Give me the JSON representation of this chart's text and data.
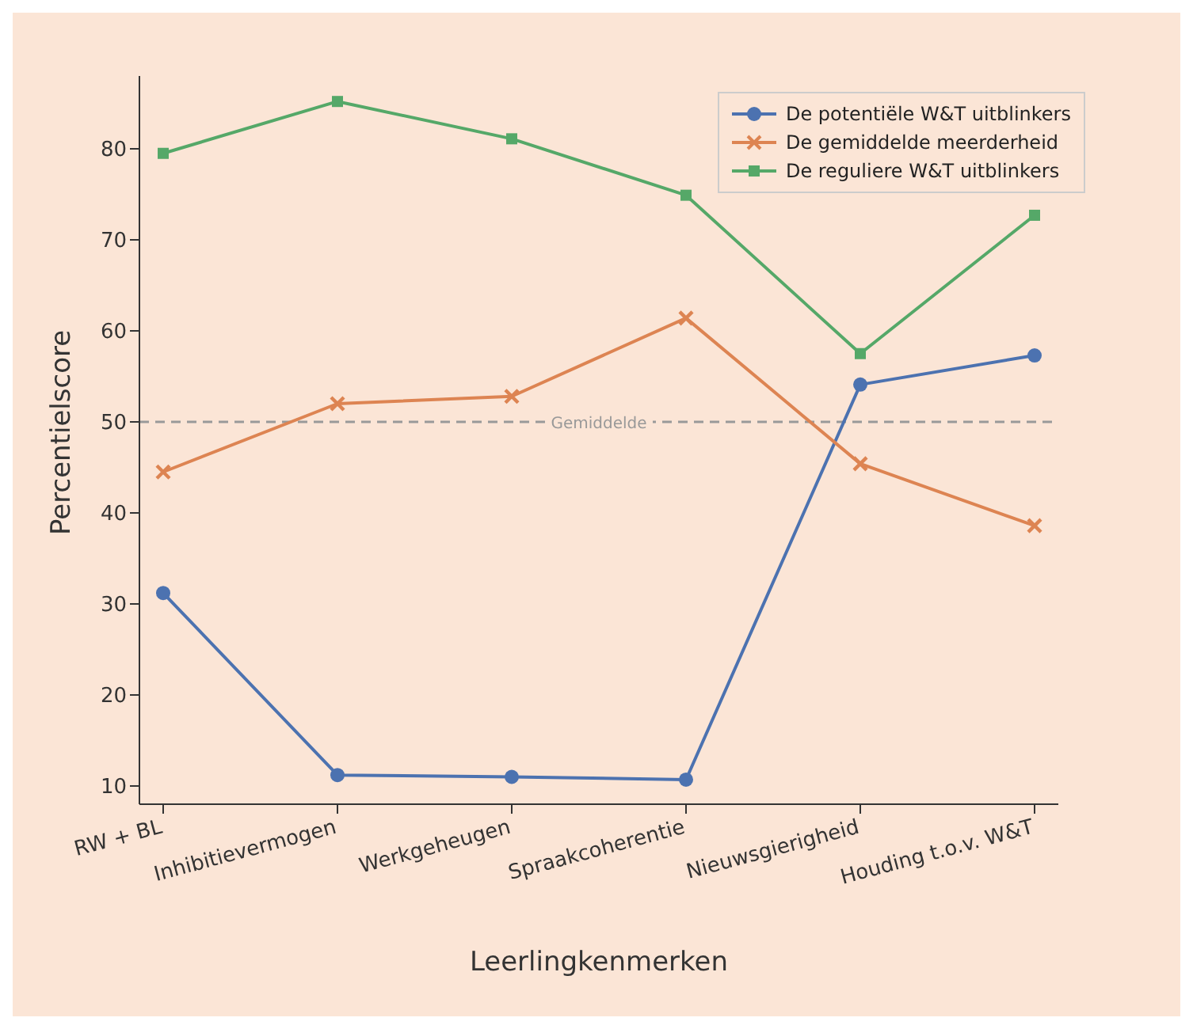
{
  "chart_data": {
    "type": "line",
    "xlabel": "Leerlingkenmerken",
    "ylabel": "Percentielscore",
    "categories": [
      "RW + BL",
      "Inhibitievermogen",
      "Werkgeheugen",
      "Spraakcoherentie",
      "Nieuwsgierigheid",
      "Houding t.o.v. W&T"
    ],
    "series": [
      {
        "name": "De potentiële W&T uitblinkers",
        "color": "#4c72b0",
        "marker": "circle",
        "values": [
          31.2,
          11.2,
          11.0,
          10.7,
          54.1,
          57.3
        ]
      },
      {
        "name": "De gemiddelde meerderheid",
        "color": "#dd8452",
        "marker": "cross",
        "values": [
          44.5,
          52.0,
          52.8,
          61.4,
          45.4,
          38.6
        ]
      },
      {
        "name": "De reguliere W&T uitblinkers",
        "color": "#55a868",
        "marker": "square",
        "values": [
          79.5,
          85.2,
          81.1,
          74.9,
          57.5,
          72.7
        ]
      }
    ],
    "ylim": [
      8,
      88
    ],
    "yticks": [
      10,
      20,
      30,
      40,
      50,
      60,
      70,
      80
    ],
    "ref_lines": [
      {
        "axis": "y",
        "value": 50,
        "label": "Gemiddelde",
        "color": "#999999",
        "line_style": "dashed"
      }
    ],
    "legend": "top right",
    "grid": false
  }
}
